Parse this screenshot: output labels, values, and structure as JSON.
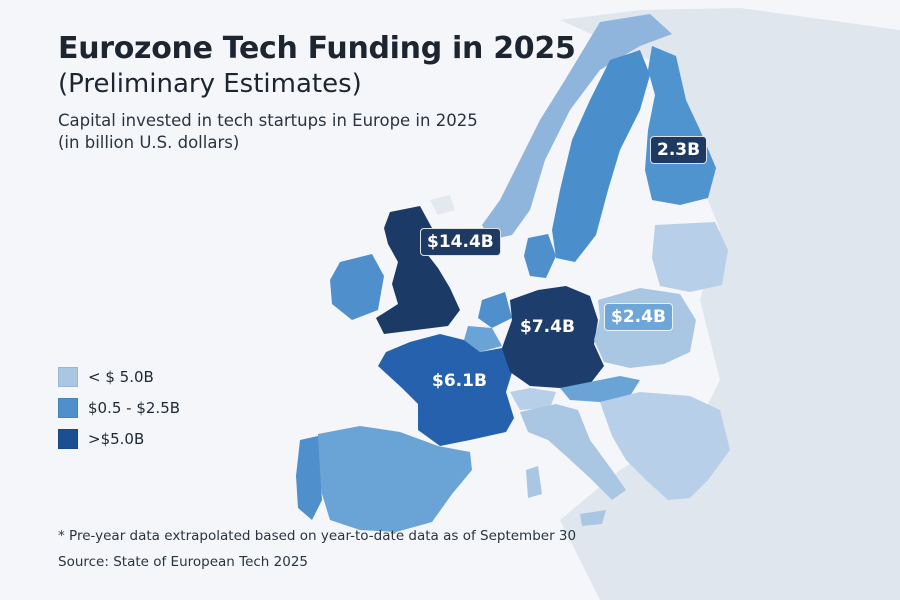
{
  "title": "Eurozone Tech Funding in 2025",
  "subtitle": "(Preliminary Estimates)",
  "description_line1": "Capital invested in tech startups in Europe in 2025",
  "description_line2": "(in billion U.S. dollars)",
  "legend": [
    {
      "label": "< $ 5.0B",
      "color": "#a9c6e3"
    },
    {
      "label": "$0.5 - $2.5B",
      "color": "#4f8fcb"
    },
    {
      "label": ">$5.0B",
      "color": "#1b4f93"
    }
  ],
  "colors": {
    "background": "#f4f6f9",
    "land_other": "#dfe6ee",
    "water": "#f4f6f9",
    "uk": "#1c3a66",
    "germany": "#1d3d6c",
    "france": "#2561ad",
    "finland": "#4f93cf",
    "sweden": "#4a8fcc",
    "norway": "#8fb5dc",
    "poland": "#a9c6e3",
    "light": "#b7cfe8",
    "mid": "#6aa3d6",
    "label_dark": "#1f3a62"
  },
  "map_data": [
    {
      "country": "United Kingdom",
      "value_label": "$14.4B",
      "value_billion_usd": 14.4
    },
    {
      "country": "Germany",
      "value_label": "$7.4B",
      "value_billion_usd": 7.4
    },
    {
      "country": "France",
      "value_label": "$6.1B",
      "value_billion_usd": 6.1
    },
    {
      "country": "Poland",
      "value_label": "$2.4B",
      "value_billion_usd": 2.4
    },
    {
      "country": "Finland",
      "value_label": "2.3B",
      "value_billion_usd": 2.3
    }
  ],
  "footnote": "* Pre-year data extrapolated based on year-to-date data as of September 30",
  "source": "Source: State of European Tech 2025"
}
